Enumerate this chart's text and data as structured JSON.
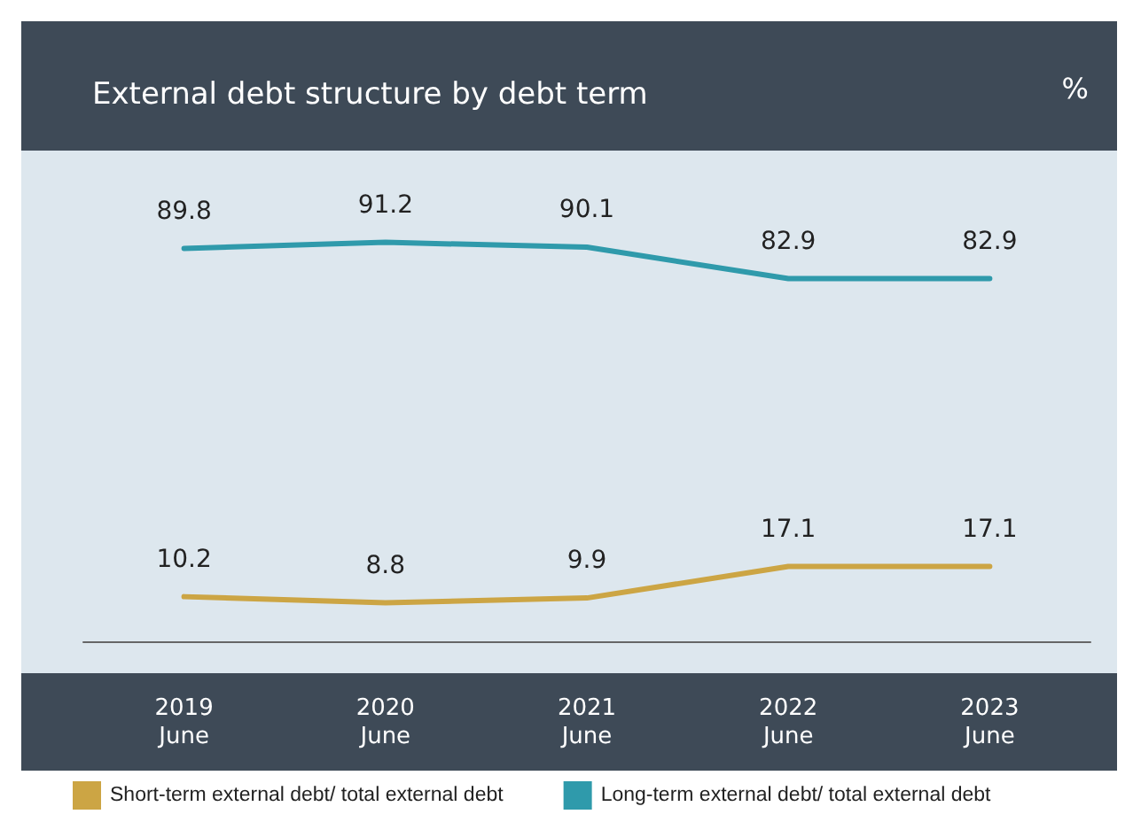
{
  "chart_data": {
    "type": "line",
    "title": "External debt structure by debt term",
    "ylabel": "%",
    "categories": [
      "2019\nJune",
      "2020\nJune",
      "2021\nJune",
      "2022\nJune",
      "2023\nJune"
    ],
    "series": [
      {
        "name": "Short-term external debt/ total external debt",
        "color": "#cca544",
        "values": [
          10.2,
          8.8,
          9.9,
          17.1,
          17.1
        ]
      },
      {
        "name": "Long-term external debt/ total external debt",
        "color": "#2f9aab",
        "values": [
          89.8,
          91.2,
          90.1,
          82.9,
          82.9
        ]
      }
    ],
    "data_labels": true,
    "legend": "bottom",
    "grid": false,
    "marker": "none",
    "line_style": "solid"
  }
}
